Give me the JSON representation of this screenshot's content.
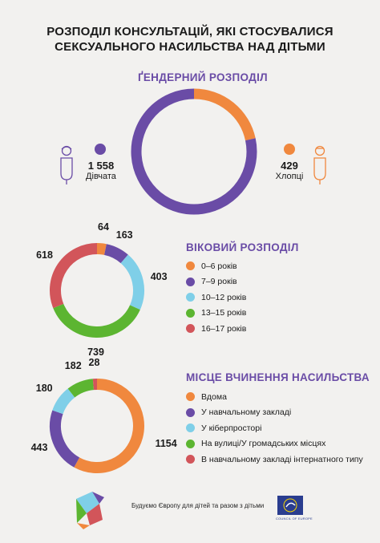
{
  "title_line1": "РОЗПОДІЛ КОНСУЛЬТАЦІЙ, ЯКІ СТОСУВАЛИСЯ",
  "title_line2": "СЕКСУАЛЬНОГО НАСИЛЬСТВА НАД ДІТЬМИ",
  "gender": {
    "girls_value": "1 558",
    "girls_label": "Дівчата",
    "boys_value": "429",
    "boys_label": "Хлопці"
  },
  "footer": {
    "tagline": "Будуємо Європу для дітей та разом з дітьми",
    "coe_label": "COUNCIL OF EUROPE"
  },
  "colors": {
    "orange": "#f0883e",
    "purple": "#6a4ca6",
    "lightblue": "#7fcfe8",
    "green": "#5cb531",
    "red": "#d2555a"
  },
  "chart_data": [
    {
      "type": "pie",
      "title": "ҐЕНДЕРНИЙ РОЗПОДІЛ",
      "categories": [
        "Дівчата",
        "Хлопці"
      ],
      "values": [
        1558,
        429
      ],
      "colors": [
        "#6a4ca6",
        "#f0883e"
      ]
    },
    {
      "type": "pie",
      "title": "ВІКОВИЙ РОЗПОДІЛ",
      "categories": [
        "0–6 років",
        "7–9 років",
        "10–12 років",
        "13–15 років",
        "16–17 років"
      ],
      "values": [
        64,
        163,
        403,
        739,
        618
      ],
      "colors": [
        "#f0883e",
        "#6a4ca6",
        "#7fcfe8",
        "#5cb531",
        "#d2555a"
      ]
    },
    {
      "type": "pie",
      "title": "МІСЦЕ ВЧИНЕННЯ НАСИЛЬСТВА",
      "categories": [
        "Вдома",
        "У навчальному закладі",
        "У кіберпросторі",
        "На вулиці/У громадських місцях",
        "В навчальному закладі інтернатного типу"
      ],
      "values": [
        1154,
        443,
        180,
        182,
        28
      ],
      "colors": [
        "#f0883e",
        "#6a4ca6",
        "#7fcfe8",
        "#5cb531",
        "#d2555a"
      ]
    }
  ]
}
